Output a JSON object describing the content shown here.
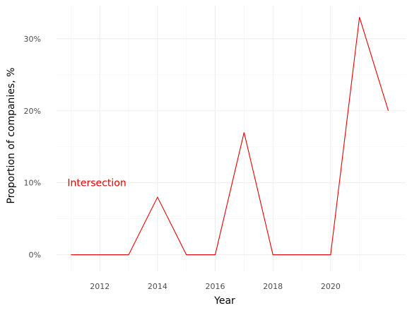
{
  "chart_data": {
    "type": "line",
    "title": "",
    "xlabel": "Year",
    "ylabel": "Proportion of companies, %",
    "xlim": [
      2010.5,
      2022.6
    ],
    "ylim": [
      -2.3,
      34.6
    ],
    "x_ticks": [
      2012,
      2014,
      2016,
      2018,
      2020
    ],
    "x_tick_labels": [
      "2012",
      "2014",
      "2016",
      "2018",
      "2020"
    ],
    "y_ticks": [
      0,
      10,
      20,
      30
    ],
    "y_tick_labels": [
      "0%",
      "10%",
      "20%",
      "30%"
    ],
    "grid": true,
    "series": [
      {
        "color": "#e60000",
        "x": [
          2011,
          2012,
          2013,
          2014,
          2015,
          2016,
          2017,
          2018,
          2019,
          2020,
          2021,
          2022
        ],
        "values": [
          0,
          0,
          0,
          8,
          0,
          0,
          17,
          0,
          0,
          0,
          33,
          20
        ]
      }
    ],
    "annotations": [
      {
        "text": "Intersection",
        "x": 2011,
        "y": 10,
        "color": "#e60000"
      }
    ]
  }
}
